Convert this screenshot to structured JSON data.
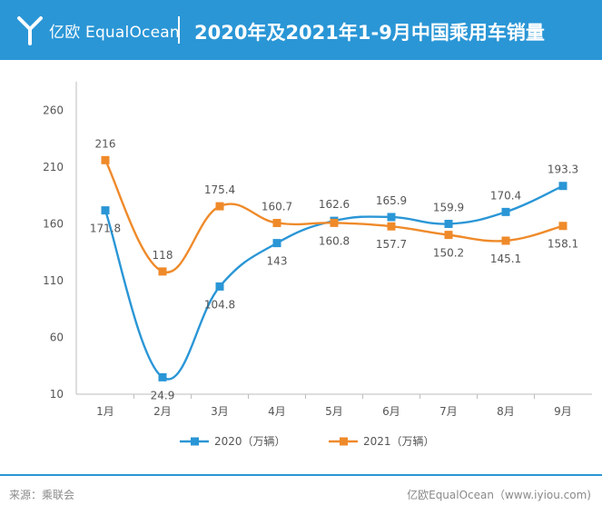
{
  "header": {
    "brand": "亿欧 EqualOcean",
    "title": "2020年及2021年1-9月中国乘用车销量"
  },
  "footer": {
    "source": "来源：乘联会",
    "credit": "亿欧EqualOcean（www.iyiou.com)"
  },
  "colors": {
    "header_bg": "#2a96d6",
    "series_2020": "#2a96d6",
    "series_2021": "#ef8a2a"
  },
  "chart_data": {
    "type": "line",
    "categories": [
      "1月",
      "2月",
      "3月",
      "4月",
      "5月",
      "6月",
      "7月",
      "8月",
      "9月"
    ],
    "yticks": [
      10,
      60,
      110,
      160,
      210,
      260
    ],
    "ylim": [
      10,
      285
    ],
    "series": [
      {
        "name": "2020（万辆）",
        "values": [
          171.8,
          24.9,
          104.8,
          143,
          162.6,
          165.9,
          159.9,
          170.4,
          193.3
        ]
      },
      {
        "name": "2021（万辆）",
        "values": [
          216,
          118,
          175.4,
          160.7,
          160.8,
          157.7,
          150.2,
          145.1,
          158.1
        ]
      }
    ],
    "legend_position": "bottom",
    "grid": false
  }
}
